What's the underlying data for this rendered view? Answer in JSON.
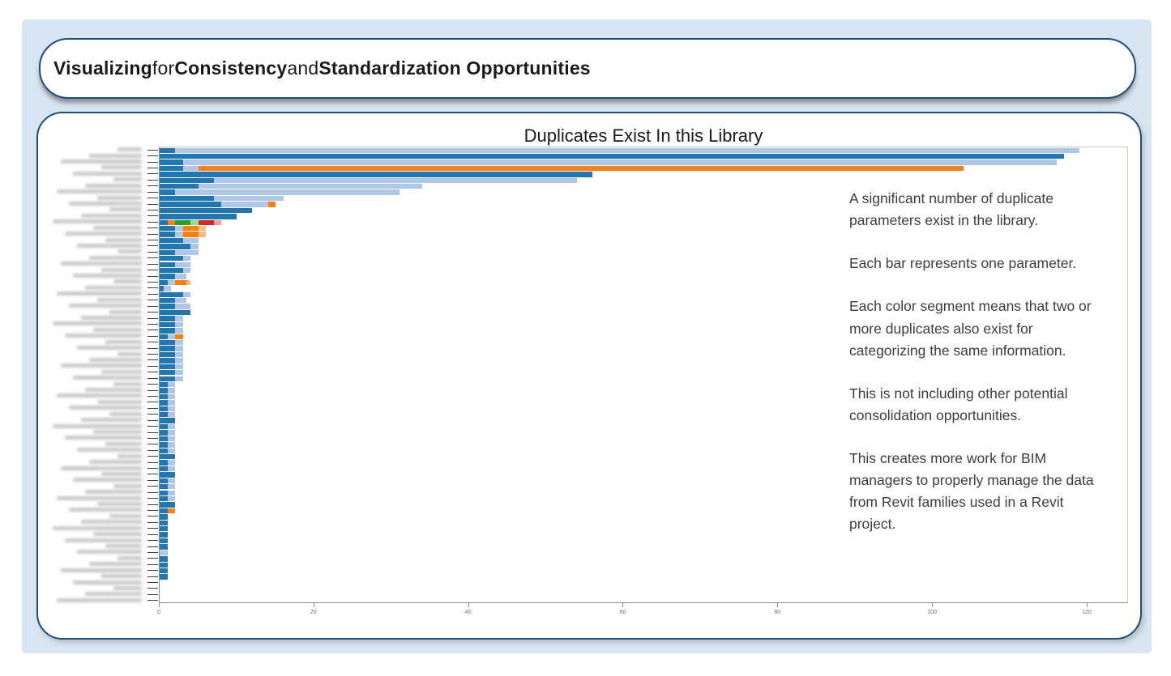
{
  "slide_title": {
    "parts": [
      {
        "text": "Visualizing",
        "bold": true
      },
      {
        "text": " for ",
        "bold": false
      },
      {
        "text": "Consistency",
        "bold": true
      },
      {
        "text": " and ",
        "bold": false
      },
      {
        "text": "Standardization Opportunities",
        "bold": true
      }
    ]
  },
  "chart_data": {
    "type": "bar",
    "orientation": "horizontal",
    "title": "Duplicates Exist In this Library",
    "xlabel": "",
    "ylabel": "",
    "xlim": [
      0,
      125
    ],
    "x_ticks": [
      0,
      20,
      40,
      60,
      80,
      100,
      120
    ],
    "grid": false,
    "legend": null,
    "y_axis": {
      "labels_redacted": true,
      "tick_count": 76
    },
    "colors": {
      "b": "#1f77b4",
      "l": "#aec7e8",
      "o": "#ff7f0e",
      "lo": "#ffbb78",
      "g": "#2ca02c",
      "lg": "#98df8a",
      "r": "#d62728",
      "p": "#ff9896"
    },
    "color_names": {
      "b": "dark-blue",
      "l": "light-blue",
      "o": "orange",
      "lo": "light-orange",
      "g": "green",
      "lg": "light-green",
      "r": "red",
      "p": "pink"
    },
    "rows": [
      [
        [
          "b",
          2
        ],
        [
          "l",
          117
        ]
      ],
      [
        [
          "b",
          117
        ]
      ],
      [
        [
          "b",
          3
        ],
        [
          "l",
          113
        ]
      ],
      [
        [
          "b",
          3
        ],
        [
          "l",
          2
        ],
        [
          "o",
          99
        ]
      ],
      [
        [
          "b",
          56
        ]
      ],
      [
        [
          "b",
          7
        ],
        [
          "l",
          47
        ]
      ],
      [
        [
          "b",
          5
        ],
        [
          "l",
          29
        ]
      ],
      [
        [
          "b",
          2
        ],
        [
          "l",
          29
        ]
      ],
      [
        [
          "b",
          7
        ],
        [
          "l",
          9
        ]
      ],
      [
        [
          "b",
          8
        ],
        [
          "l",
          6
        ],
        [
          "o",
          1
        ]
      ],
      [
        [
          "b",
          12
        ]
      ],
      [
        [
          "b",
          10
        ]
      ],
      [
        [
          "b",
          1
        ],
        [
          "o",
          1
        ],
        [
          "g",
          2
        ],
        [
          "lg",
          1
        ],
        [
          "r",
          2
        ],
        [
          "p",
          1
        ]
      ],
      [
        [
          "b",
          2
        ],
        [
          "l",
          1
        ],
        [
          "o",
          2
        ],
        [
          "lo",
          1
        ]
      ],
      [
        [
          "b",
          2
        ],
        [
          "l",
          1
        ],
        [
          "o",
          2
        ],
        [
          "lo",
          1
        ]
      ],
      [
        [
          "b",
          3
        ],
        [
          "l",
          2
        ]
      ],
      [
        [
          "b",
          4
        ],
        [
          "l",
          1
        ]
      ],
      [
        [
          "b",
          2
        ],
        [
          "l",
          3
        ]
      ],
      [
        [
          "b",
          3
        ],
        [
          "l",
          1
        ]
      ],
      [
        [
          "b",
          2
        ],
        [
          "l",
          2
        ]
      ],
      [
        [
          "b",
          3
        ],
        [
          "l",
          1
        ]
      ],
      [
        [
          "b",
          2
        ],
        [
          "l",
          1.5
        ]
      ],
      [
        [
          "b",
          1
        ],
        [
          "l",
          1
        ],
        [
          "o",
          1.5
        ],
        [
          "lo",
          0.5
        ]
      ],
      [
        [
          "b",
          0.5
        ],
        [
          "l",
          1
        ]
      ],
      [
        [
          "b",
          3
        ],
        [
          "l",
          1
        ]
      ],
      [
        [
          "b",
          2
        ],
        [
          "l",
          1.5
        ]
      ],
      [
        [
          "b",
          2
        ],
        [
          "l",
          2
        ]
      ],
      [
        [
          "b",
          4
        ]
      ],
      [
        [
          "b",
          2
        ],
        [
          "l",
          1
        ]
      ],
      [
        [
          "b",
          2
        ],
        [
          "l",
          1
        ]
      ],
      [
        [
          "b",
          2
        ],
        [
          "l",
          1
        ]
      ],
      [
        [
          "b",
          1
        ],
        [
          "l",
          1
        ],
        [
          "o",
          1
        ]
      ],
      [
        [
          "b",
          2
        ],
        [
          "l",
          1
        ]
      ],
      [
        [
          "b",
          2
        ],
        [
          "l",
          1
        ]
      ],
      [
        [
          "b",
          2
        ],
        [
          "l",
          1
        ]
      ],
      [
        [
          "b",
          2
        ],
        [
          "l",
          1
        ]
      ],
      [
        [
          "b",
          2
        ],
        [
          "l",
          1
        ]
      ],
      [
        [
          "b",
          2
        ],
        [
          "l",
          1
        ]
      ],
      [
        [
          "b",
          2
        ],
        [
          "l",
          1
        ]
      ],
      [
        [
          "b",
          1
        ],
        [
          "l",
          1
        ]
      ],
      [
        [
          "b",
          1
        ],
        [
          "l",
          1
        ]
      ],
      [
        [
          "b",
          1
        ],
        [
          "l",
          1
        ]
      ],
      [
        [
          "b",
          1
        ],
        [
          "l",
          1
        ]
      ],
      [
        [
          "b",
          1
        ],
        [
          "l",
          1
        ]
      ],
      [
        [
          "b",
          1
        ],
        [
          "l",
          1
        ]
      ],
      [
        [
          "b",
          2
        ]
      ],
      [
        [
          "b",
          1
        ],
        [
          "l",
          1
        ]
      ],
      [
        [
          "b",
          1
        ],
        [
          "l",
          1
        ]
      ],
      [
        [
          "b",
          1
        ],
        [
          "l",
          1
        ]
      ],
      [
        [
          "b",
          1
        ],
        [
          "l",
          1
        ]
      ],
      [
        [
          "b",
          1
        ],
        [
          "l",
          1
        ]
      ],
      [
        [
          "b",
          2
        ]
      ],
      [
        [
          "b",
          1
        ],
        [
          "l",
          1
        ]
      ],
      [
        [
          "b",
          1
        ],
        [
          "l",
          1
        ]
      ],
      [
        [
          "b",
          2
        ]
      ],
      [
        [
          "b",
          1
        ],
        [
          "l",
          1
        ]
      ],
      [
        [
          "b",
          1
        ],
        [
          "l",
          1
        ]
      ],
      [
        [
          "b",
          1
        ],
        [
          "l",
          1
        ]
      ],
      [
        [
          "b",
          1
        ],
        [
          "l",
          1
        ]
      ],
      [
        [
          "b",
          2
        ]
      ],
      [
        [
          "b",
          1
        ],
        [
          "o",
          1
        ]
      ],
      [
        [
          "b",
          1
        ]
      ],
      [
        [
          "b",
          1
        ]
      ],
      [
        [
          "b",
          1
        ]
      ],
      [
        [
          "b",
          1
        ]
      ],
      [
        [
          "b",
          1
        ]
      ],
      [
        [
          "b",
          1
        ]
      ],
      [
        [
          "l",
          1
        ]
      ],
      [
        [
          "b",
          1
        ]
      ],
      [
        [
          "b",
          1
        ]
      ],
      [
        [
          "b",
          1
        ]
      ],
      [
        [
          "b",
          1
        ]
      ],
      [],
      [],
      [],
      []
    ]
  },
  "annotation": {
    "paragraphs": [
      "A significant number of duplicate parameters exist in the library.",
      "Each bar represents one parameter.",
      "Each color segment means that two or more duplicates also exist for categorizing the same information.",
      "This is not including other potential consolidation opportunities.",
      "This creates more work for BIM managers to properly manage the data from Revit families used in a Revit project."
    ]
  }
}
